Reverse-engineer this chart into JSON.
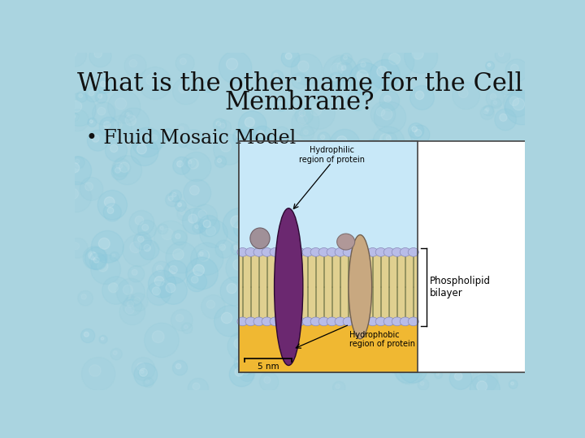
{
  "title_line1": "What is the other name for the Cell",
  "title_line2": "Membrane?",
  "bullet_text": "• Fluid Mosaic Model",
  "slide_bg": "#aad4e0",
  "title_color": "#111111",
  "bullet_color": "#111111",
  "title_fontsize": 22,
  "bullet_fontsize": 17,
  "title_font": "serif",
  "extracell_color": "#c8e8f8",
  "lavender_color": "#c0c0e0",
  "intracell_color": "#f0b832",
  "tail_color": "#e0d090",
  "head_color": "#b8bce8",
  "purple_protein": "#6b2870",
  "tan_protein": "#c8a880",
  "mushroom_color": "#a09090",
  "mushroom2_color": "#b09898"
}
